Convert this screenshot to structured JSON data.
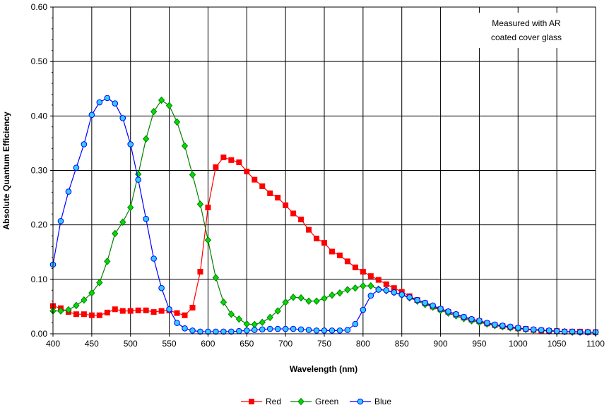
{
  "chart_data": {
    "type": "line",
    "title": "",
    "xlabel": "Wavelength (nm)",
    "ylabel": "Absolute Quantum Efficiency",
    "xlim": [
      400,
      1100
    ],
    "ylim": [
      0,
      0.6
    ],
    "x_ticks": [
      400,
      450,
      500,
      550,
      600,
      650,
      700,
      750,
      800,
      850,
      900,
      950,
      1000,
      1050,
      1100
    ],
    "x_tick_labels": [
      "400",
      "450",
      "500",
      "550",
      "600",
      "650",
      "700",
      "750",
      "800",
      "850",
      "900",
      "950",
      "1000",
      "1050",
      "1100"
    ],
    "y_ticks": [
      0,
      0.1,
      0.2,
      0.3,
      0.4,
      0.5,
      0.6
    ],
    "y_tick_labels": [
      "0.00",
      "0.10",
      "0.20",
      "0.30",
      "0.40",
      "0.50",
      "0.60"
    ],
    "grid": true,
    "annotation": [
      "Measured with AR",
      "coated cover glass"
    ],
    "legend_position": "bottom",
    "series": [
      {
        "name": "Red",
        "color": "#ff0000",
        "marker": "square",
        "x": [
          400,
          410,
          420,
          430,
          440,
          450,
          460,
          470,
          480,
          490,
          500,
          510,
          520,
          530,
          540,
          550,
          560,
          570,
          580,
          590,
          600,
          610,
          620,
          630,
          640,
          650,
          660,
          670,
          680,
          690,
          700,
          710,
          720,
          730,
          740,
          750,
          760,
          770,
          780,
          790,
          800,
          810,
          820,
          830,
          840,
          850,
          860,
          870,
          880,
          890,
          900,
          910,
          920,
          930,
          940,
          950,
          960,
          970,
          980,
          990,
          1000,
          1010,
          1020,
          1030,
          1040,
          1050,
          1060,
          1070,
          1080,
          1090,
          1100
        ],
        "values": [
          0.051,
          0.047,
          0.04,
          0.036,
          0.036,
          0.034,
          0.034,
          0.039,
          0.045,
          0.042,
          0.042,
          0.043,
          0.043,
          0.04,
          0.042,
          0.043,
          0.038,
          0.034,
          0.048,
          0.114,
          0.232,
          0.306,
          0.324,
          0.319,
          0.315,
          0.298,
          0.283,
          0.271,
          0.258,
          0.25,
          0.236,
          0.221,
          0.21,
          0.191,
          0.175,
          0.167,
          0.151,
          0.144,
          0.133,
          0.122,
          0.114,
          0.106,
          0.099,
          0.091,
          0.084,
          0.077,
          0.069,
          0.062,
          0.056,
          0.05,
          0.045,
          0.04,
          0.035,
          0.03,
          0.026,
          0.023,
          0.019,
          0.016,
          0.014,
          0.012,
          0.01,
          0.009,
          0.007,
          0.006,
          0.005,
          0.005,
          0.004,
          0.004,
          0.004,
          0.003,
          0.003
        ]
      },
      {
        "name": "Green",
        "color": "#008000",
        "marker": "diamond",
        "x": [
          400,
          410,
          420,
          430,
          440,
          450,
          460,
          470,
          480,
          490,
          500,
          510,
          520,
          530,
          540,
          550,
          560,
          570,
          580,
          590,
          600,
          610,
          620,
          630,
          640,
          650,
          660,
          670,
          680,
          690,
          700,
          710,
          720,
          730,
          740,
          750,
          760,
          770,
          780,
          790,
          800,
          810,
          820,
          830,
          840,
          850,
          860,
          870,
          880,
          890,
          900,
          910,
          920,
          930,
          940,
          950,
          960,
          970,
          980,
          990,
          1000,
          1010,
          1020,
          1030,
          1040,
          1050,
          1060,
          1070,
          1080,
          1090,
          1100
        ],
        "values": [
          0.042,
          0.042,
          0.044,
          0.052,
          0.062,
          0.075,
          0.094,
          0.133,
          0.184,
          0.205,
          0.232,
          0.293,
          0.358,
          0.408,
          0.429,
          0.419,
          0.389,
          0.345,
          0.292,
          0.238,
          0.172,
          0.103,
          0.058,
          0.036,
          0.027,
          0.018,
          0.017,
          0.021,
          0.03,
          0.042,
          0.058,
          0.067,
          0.066,
          0.06,
          0.06,
          0.065,
          0.071,
          0.075,
          0.081,
          0.084,
          0.088,
          0.088,
          0.082,
          0.079,
          0.076,
          0.071,
          0.066,
          0.06,
          0.054,
          0.049,
          0.043,
          0.038,
          0.033,
          0.028,
          0.024,
          0.021,
          0.018,
          0.015,
          0.013,
          0.011,
          0.009,
          0.008,
          0.007,
          0.006,
          0.005,
          0.004,
          0.004,
          0.003,
          0.003,
          0.003,
          0.002
        ]
      },
      {
        "name": "Blue",
        "color": "#0000ff",
        "marker": "circle",
        "x": [
          400,
          410,
          420,
          430,
          440,
          450,
          460,
          470,
          480,
          490,
          500,
          510,
          520,
          530,
          540,
          550,
          560,
          570,
          580,
          590,
          600,
          610,
          620,
          630,
          640,
          650,
          660,
          670,
          680,
          690,
          700,
          710,
          720,
          730,
          740,
          750,
          760,
          770,
          780,
          790,
          800,
          810,
          820,
          830,
          840,
          850,
          860,
          870,
          880,
          890,
          900,
          910,
          920,
          930,
          940,
          950,
          960,
          970,
          980,
          990,
          1000,
          1010,
          1020,
          1030,
          1040,
          1050,
          1060,
          1070,
          1080,
          1090,
          1100
        ],
        "values": [
          0.127,
          0.207,
          0.261,
          0.305,
          0.348,
          0.402,
          0.425,
          0.433,
          0.423,
          0.396,
          0.348,
          0.283,
          0.211,
          0.138,
          0.084,
          0.045,
          0.02,
          0.01,
          0.006,
          0.004,
          0.004,
          0.004,
          0.004,
          0.004,
          0.005,
          0.006,
          0.007,
          0.008,
          0.009,
          0.009,
          0.009,
          0.009,
          0.008,
          0.007,
          0.006,
          0.006,
          0.006,
          0.006,
          0.007,
          0.018,
          0.044,
          0.07,
          0.081,
          0.08,
          0.076,
          0.072,
          0.067,
          0.062,
          0.057,
          0.052,
          0.046,
          0.041,
          0.036,
          0.031,
          0.027,
          0.024,
          0.02,
          0.017,
          0.015,
          0.013,
          0.011,
          0.009,
          0.008,
          0.007,
          0.006,
          0.005,
          0.004,
          0.004,
          0.003,
          0.003,
          0.003
        ]
      }
    ]
  }
}
